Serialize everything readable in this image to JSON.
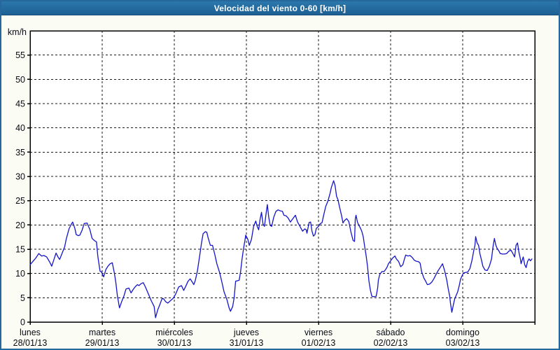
{
  "window": {
    "title": "Velocidad del viento 0-60 [km/h]"
  },
  "colors": {
    "title_bar_top": "#2b77ac",
    "title_bar_bottom": "#1d6093",
    "frame_border": "#26679c",
    "page_bg": "#fbfdf4",
    "plot_bg": "#ffffff",
    "grid": "#1a1a1a",
    "axis": "#000000",
    "line": "#1414cc",
    "text": "#0a0a14"
  },
  "chart_data": {
    "type": "line",
    "title": "Velocidad del viento 0-60 [km/h]",
    "ylabel": "km/h",
    "ylim": [
      0,
      60
    ],
    "y_ticks": [
      0,
      5,
      10,
      15,
      20,
      25,
      30,
      35,
      40,
      45,
      50,
      55
    ],
    "xlim_days": [
      0,
      7
    ],
    "grid": "dashed",
    "legend": "none",
    "x_days": [
      {
        "name": "lunes",
        "date": "28/01/13"
      },
      {
        "name": "martes",
        "date": "29/01/13"
      },
      {
        "name": "miércoles",
        "date": "30/01/13"
      },
      {
        "name": "jueves",
        "date": "31/01/13"
      },
      {
        "name": "viernes",
        "date": "01/02/13"
      },
      {
        "name": "sábado",
        "date": "02/02/13"
      },
      {
        "name": "domingo",
        "date": "03/02/13"
      }
    ],
    "series": [
      {
        "name": "Velocidad del viento",
        "unit": "km/h",
        "points": [
          [
            0.0,
            11.8
          ],
          [
            0.04,
            12.5
          ],
          [
            0.08,
            13.2
          ],
          [
            0.12,
            14.1
          ],
          [
            0.16,
            13.6
          ],
          [
            0.19,
            13.7
          ],
          [
            0.23,
            13.4
          ],
          [
            0.27,
            12.4
          ],
          [
            0.3,
            11.5
          ],
          [
            0.34,
            13.3
          ],
          [
            0.36,
            14.2
          ],
          [
            0.39,
            13.3
          ],
          [
            0.41,
            12.9
          ],
          [
            0.44,
            14.0
          ],
          [
            0.48,
            15.5
          ],
          [
            0.5,
            17.0
          ],
          [
            0.54,
            19.2
          ],
          [
            0.57,
            20.1
          ],
          [
            0.59,
            20.6
          ],
          [
            0.62,
            19.3
          ],
          [
            0.64,
            18.0
          ],
          [
            0.67,
            17.8
          ],
          [
            0.69,
            17.9
          ],
          [
            0.72,
            18.9
          ],
          [
            0.75,
            20.3
          ],
          [
            0.79,
            20.4
          ],
          [
            0.83,
            19.0
          ],
          [
            0.86,
            17.2
          ],
          [
            0.89,
            16.8
          ],
          [
            0.92,
            16.5
          ],
          [
            0.94,
            13.5
          ],
          [
            0.97,
            10.5
          ],
          [
            0.99,
            10.3
          ],
          [
            1.02,
            9.3
          ],
          [
            1.05,
            10.8
          ],
          [
            1.08,
            11.5
          ],
          [
            1.11,
            12.0
          ],
          [
            1.14,
            12.2
          ],
          [
            1.17,
            10.0
          ],
          [
            1.19,
            8.0
          ],
          [
            1.21,
            5.5
          ],
          [
            1.24,
            2.9
          ],
          [
            1.27,
            4.2
          ],
          [
            1.3,
            5.3
          ],
          [
            1.33,
            6.8
          ],
          [
            1.37,
            7.0
          ],
          [
            1.4,
            6.0
          ],
          [
            1.43,
            6.7
          ],
          [
            1.46,
            7.3
          ],
          [
            1.49,
            7.7
          ],
          [
            1.51,
            7.5
          ],
          [
            1.54,
            7.9
          ],
          [
            1.57,
            8.1
          ],
          [
            1.6,
            7.2
          ],
          [
            1.64,
            5.8
          ],
          [
            1.68,
            4.4
          ],
          [
            1.72,
            3.2
          ],
          [
            1.74,
            0.9
          ],
          [
            1.77,
            2.5
          ],
          [
            1.8,
            3.6
          ],
          [
            1.83,
            4.8
          ],
          [
            1.85,
            4.8
          ],
          [
            1.88,
            4.2
          ],
          [
            1.91,
            3.9
          ],
          [
            1.94,
            4.3
          ],
          [
            1.97,
            4.7
          ],
          [
            1.99,
            5.0
          ],
          [
            2.02,
            5.8
          ],
          [
            2.06,
            7.2
          ],
          [
            2.1,
            7.5
          ],
          [
            2.13,
            6.5
          ],
          [
            2.16,
            7.4
          ],
          [
            2.19,
            8.4
          ],
          [
            2.22,
            8.9
          ],
          [
            2.25,
            8.2
          ],
          [
            2.27,
            7.7
          ],
          [
            2.29,
            8.5
          ],
          [
            2.32,
            10.5
          ],
          [
            2.35,
            13.5
          ],
          [
            2.38,
            16.5
          ],
          [
            2.4,
            18.2
          ],
          [
            2.43,
            18.6
          ],
          [
            2.45,
            18.5
          ],
          [
            2.47,
            17.3
          ],
          [
            2.5,
            15.8
          ],
          [
            2.53,
            15.8
          ],
          [
            2.56,
            14.0
          ],
          [
            2.59,
            12.0
          ],
          [
            2.63,
            10.1
          ],
          [
            2.66,
            8.2
          ],
          [
            2.69,
            6.2
          ],
          [
            2.73,
            4.6
          ],
          [
            2.76,
            2.9
          ],
          [
            2.78,
            2.2
          ],
          [
            2.81,
            3.2
          ],
          [
            2.83,
            5.0
          ],
          [
            2.85,
            8.4
          ],
          [
            2.9,
            8.6
          ],
          [
            2.92,
            10.5
          ],
          [
            2.94,
            13.0
          ],
          [
            2.96,
            15.1
          ],
          [
            2.98,
            16.8
          ],
          [
            2.99,
            17.9
          ],
          [
            3.02,
            17.0
          ],
          [
            3.04,
            15.8
          ],
          [
            3.07,
            17.0
          ],
          [
            3.1,
            19.7
          ],
          [
            3.13,
            20.8
          ],
          [
            3.15,
            19.7
          ],
          [
            3.17,
            19.0
          ],
          [
            3.19,
            21.2
          ],
          [
            3.21,
            22.6
          ],
          [
            3.23,
            20.2
          ],
          [
            3.25,
            19.7
          ],
          [
            3.27,
            22.0
          ],
          [
            3.29,
            24.2
          ],
          [
            3.31,
            21.6
          ],
          [
            3.33,
            19.9
          ],
          [
            3.35,
            19.7
          ],
          [
            3.38,
            21.6
          ],
          [
            3.41,
            22.8
          ],
          [
            3.44,
            23.1
          ],
          [
            3.47,
            22.9
          ],
          [
            3.5,
            22.8
          ],
          [
            3.52,
            22.0
          ],
          [
            3.55,
            21.9
          ],
          [
            3.58,
            21.4
          ],
          [
            3.61,
            20.6
          ],
          [
            3.65,
            21.4
          ],
          [
            3.68,
            22.0
          ],
          [
            3.71,
            20.6
          ],
          [
            3.75,
            19.5
          ],
          [
            3.78,
            18.7
          ],
          [
            3.81,
            19.2
          ],
          [
            3.83,
            19.0
          ],
          [
            3.84,
            18.3
          ],
          [
            3.87,
            20.5
          ],
          [
            3.89,
            20.6
          ],
          [
            3.91,
            18.7
          ],
          [
            3.93,
            17.7
          ],
          [
            3.95,
            18.0
          ],
          [
            3.97,
            19.3
          ],
          [
            4.0,
            19.7
          ],
          [
            4.02,
            20.2
          ],
          [
            4.05,
            20.5
          ],
          [
            4.07,
            21.9
          ],
          [
            4.1,
            23.8
          ],
          [
            4.13,
            24.9
          ],
          [
            4.16,
            26.5
          ],
          [
            4.18,
            27.8
          ],
          [
            4.21,
            29.1
          ],
          [
            4.23,
            28.1
          ],
          [
            4.25,
            25.9
          ],
          [
            4.27,
            25.2
          ],
          [
            4.29,
            23.8
          ],
          [
            4.32,
            21.9
          ],
          [
            4.34,
            20.4
          ],
          [
            4.36,
            20.9
          ],
          [
            4.39,
            21.3
          ],
          [
            4.42,
            20.7
          ],
          [
            4.45,
            18.5
          ],
          [
            4.48,
            16.8
          ],
          [
            4.5,
            16.6
          ],
          [
            4.51,
            21.2
          ],
          [
            4.52,
            22.0
          ],
          [
            4.54,
            20.6
          ],
          [
            4.56,
            19.9
          ],
          [
            4.58,
            19.4
          ],
          [
            4.6,
            18.7
          ],
          [
            4.62,
            17.6
          ],
          [
            4.64,
            15.6
          ],
          [
            4.66,
            13.7
          ],
          [
            4.68,
            11.5
          ],
          [
            4.7,
            8.4
          ],
          [
            4.72,
            6.5
          ],
          [
            4.74,
            5.3
          ],
          [
            4.77,
            5.2
          ],
          [
            4.8,
            5.3
          ],
          [
            4.82,
            7.0
          ],
          [
            4.83,
            8.6
          ],
          [
            4.85,
            9.8
          ],
          [
            4.88,
            10.4
          ],
          [
            4.91,
            10.4
          ],
          [
            4.93,
            10.8
          ],
          [
            4.95,
            11.3
          ],
          [
            4.97,
            12.0
          ],
          [
            5.0,
            12.6
          ],
          [
            5.03,
            13.2
          ],
          [
            5.06,
            13.6
          ],
          [
            5.08,
            13.0
          ],
          [
            5.11,
            12.5
          ],
          [
            5.14,
            11.4
          ],
          [
            5.17,
            11.8
          ],
          [
            5.19,
            12.9
          ],
          [
            5.21,
            13.8
          ],
          [
            5.24,
            13.6
          ],
          [
            5.27,
            13.7
          ],
          [
            5.3,
            13.3
          ],
          [
            5.33,
            12.7
          ],
          [
            5.36,
            12.5
          ],
          [
            5.39,
            12.4
          ],
          [
            5.41,
            12.1
          ],
          [
            5.43,
            10.4
          ],
          [
            5.46,
            9.1
          ],
          [
            5.49,
            8.3
          ],
          [
            5.51,
            7.7
          ],
          [
            5.54,
            7.8
          ],
          [
            5.57,
            8.2
          ],
          [
            5.6,
            8.9
          ],
          [
            5.63,
            9.8
          ],
          [
            5.66,
            10.6
          ],
          [
            5.69,
            11.3
          ],
          [
            5.72,
            12.0
          ],
          [
            5.75,
            10.5
          ],
          [
            5.78,
            8.6
          ],
          [
            5.8,
            6.8
          ],
          [
            5.82,
            5.3
          ],
          [
            5.83,
            3.9
          ],
          [
            5.85,
            2.0
          ],
          [
            5.87,
            3.5
          ],
          [
            5.89,
            4.8
          ],
          [
            5.91,
            5.5
          ],
          [
            5.93,
            6.2
          ],
          [
            5.95,
            7.4
          ],
          [
            5.97,
            8.8
          ],
          [
            5.99,
            9.5
          ],
          [
            6.01,
            10.1
          ],
          [
            6.04,
            10.2
          ],
          [
            6.07,
            10.3
          ],
          [
            6.1,
            11.0
          ],
          [
            6.13,
            12.8
          ],
          [
            6.15,
            14.5
          ],
          [
            6.17,
            15.8
          ],
          [
            6.18,
            17.6
          ],
          [
            6.2,
            16.3
          ],
          [
            6.22,
            15.8
          ],
          [
            6.24,
            14.0
          ],
          [
            6.26,
            12.8
          ],
          [
            6.28,
            11.5
          ],
          [
            6.31,
            10.7
          ],
          [
            6.34,
            10.6
          ],
          [
            6.37,
            11.5
          ],
          [
            6.4,
            13.0
          ],
          [
            6.42,
            15.5
          ],
          [
            6.44,
            17.2
          ],
          [
            6.46,
            15.8
          ],
          [
            6.48,
            15.1
          ],
          [
            6.5,
            14.7
          ],
          [
            6.52,
            14.1
          ],
          [
            6.55,
            14.0
          ],
          [
            6.58,
            14.0
          ],
          [
            6.61,
            14.1
          ],
          [
            6.64,
            14.6
          ],
          [
            6.67,
            14.8
          ],
          [
            6.7,
            14.0
          ],
          [
            6.72,
            13.4
          ],
          [
            6.74,
            15.8
          ],
          [
            6.76,
            16.3
          ],
          [
            6.78,
            14.4
          ],
          [
            6.8,
            13.0
          ],
          [
            6.81,
            12.0
          ],
          [
            6.83,
            13.0
          ],
          [
            6.84,
            13.4
          ],
          [
            6.86,
            11.8
          ],
          [
            6.88,
            11.2
          ],
          [
            6.9,
            12.5
          ],
          [
            6.92,
            13.0
          ],
          [
            6.94,
            12.6
          ],
          [
            6.96,
            13.0
          ]
        ]
      }
    ]
  }
}
